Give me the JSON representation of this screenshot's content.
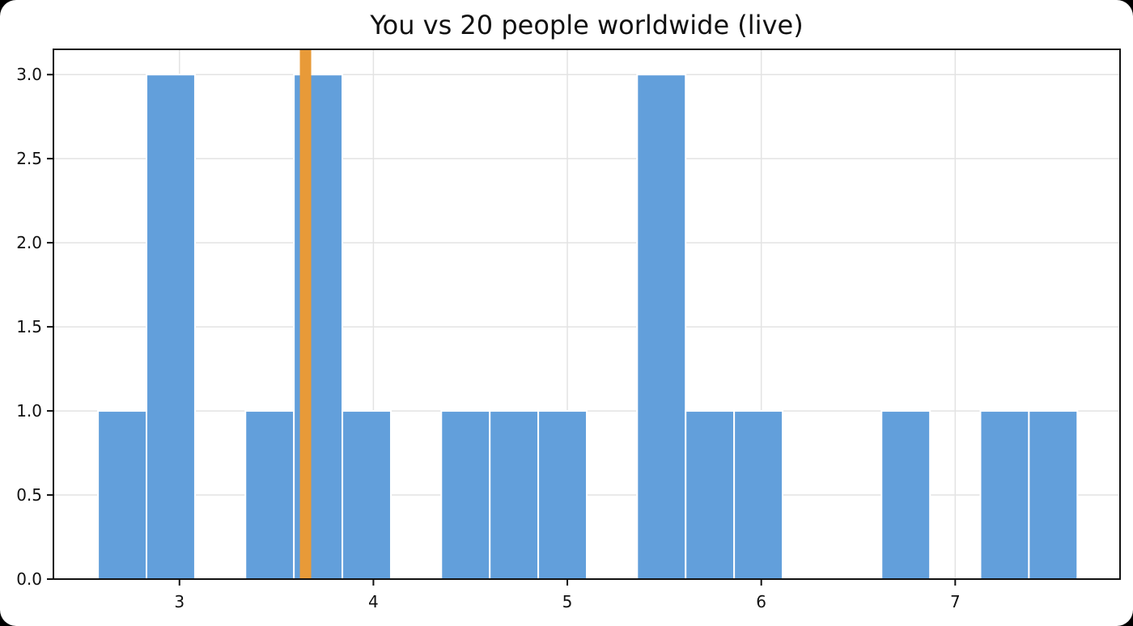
{
  "chart_data": {
    "type": "bar",
    "title": "You vs 20 people worldwide (live)",
    "xlabel": "",
    "ylabel": "",
    "xlim": [
      2.35,
      7.85
    ],
    "ylim": [
      0,
      3.15
    ],
    "x_ticks": [
      3,
      4,
      5,
      6,
      7
    ],
    "y_ticks": [
      "0.0",
      "0.5",
      "1.0",
      "1.5",
      "2.0",
      "2.5",
      "3.0"
    ],
    "bin_width": 0.25,
    "bins": [
      {
        "x0": 2.58,
        "count": 1
      },
      {
        "x0": 2.83,
        "count": 3
      },
      {
        "x0": 3.34,
        "count": 1
      },
      {
        "x0": 3.59,
        "count": 3
      },
      {
        "x0": 3.84,
        "count": 1
      },
      {
        "x0": 4.35,
        "count": 1
      },
      {
        "x0": 4.6,
        "count": 1
      },
      {
        "x0": 4.85,
        "count": 1
      },
      {
        "x0": 5.36,
        "count": 3
      },
      {
        "x0": 5.61,
        "count": 1
      },
      {
        "x0": 5.86,
        "count": 1
      },
      {
        "x0": 6.62,
        "count": 1
      },
      {
        "x0": 7.13,
        "count": 1
      },
      {
        "x0": 7.38,
        "count": 1
      }
    ],
    "you_value": 3.65,
    "grid": true,
    "colors": {
      "bars": "#629fdb",
      "you_line": "#e89a38"
    }
  }
}
